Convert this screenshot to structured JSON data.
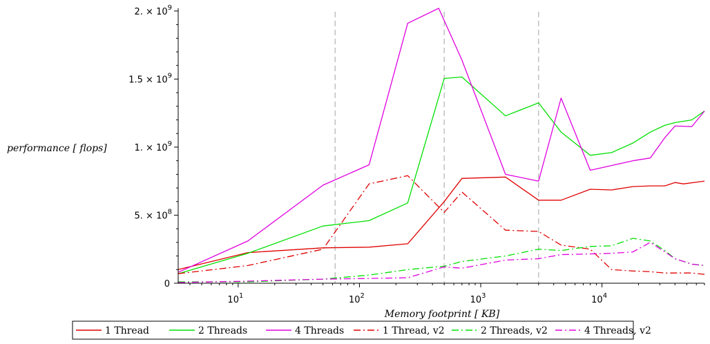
{
  "chart_data": {
    "type": "line",
    "title": "",
    "xlabel": "Memory footprint [ KB]",
    "ylabel": "performance [ flops]",
    "xscale": "log",
    "xlim": [
      3.2,
      70000
    ],
    "ylim": [
      0,
      2020000000.0
    ],
    "grid": false,
    "x_ticks": [
      {
        "value": 10,
        "label": "10",
        "exp": "1"
      },
      {
        "value": 100,
        "label": "10",
        "exp": "2"
      },
      {
        "value": 1000,
        "label": "10",
        "exp": "3"
      },
      {
        "value": 10000,
        "label": "10",
        "exp": "4"
      }
    ],
    "y_ticks": [
      {
        "value": 0,
        "label": "0",
        "exp": ""
      },
      {
        "value": 500000000,
        "label": "5. × 10",
        "exp": "8"
      },
      {
        "value": 1000000000,
        "label": "1. × 10",
        "exp": "9"
      },
      {
        "value": 1500000000,
        "label": "1.5 × 10",
        "exp": "9"
      },
      {
        "value": 2000000000,
        "label": "2. × 10",
        "exp": "9"
      }
    ],
    "vlines": [
      63,
      500,
      3000
    ],
    "vline_color": "#c0c0c0",
    "legend_position": "bottom",
    "series": [
      {
        "name": "1 Thread",
        "color": "#e00000",
        "dash": "solid",
        "x": [
          3.2,
          12,
          50,
          120,
          250,
          500,
          700,
          1600,
          3000,
          4600,
          8000,
          12000,
          18000,
          25000,
          33000,
          40000,
          47000,
          70000
        ],
        "y": [
          100000000,
          225000000,
          260000000,
          265000000,
          290000000,
          600000000,
          770000000,
          780000000,
          610000000,
          610000000,
          690000000,
          685000000,
          710000000,
          715000000,
          715000000,
          740000000,
          730000000,
          750000000
        ]
      },
      {
        "name": "2 Threads",
        "color": "#00e000",
        "dash": "solid",
        "x": [
          3.2,
          12,
          50,
          120,
          250,
          500,
          700,
          1600,
          3000,
          4600,
          8000,
          12000,
          18000,
          25000,
          33000,
          40000,
          55000,
          70000
        ],
        "y": [
          70000000,
          220000000,
          420000000,
          460000000,
          590000000,
          1505000000,
          1515000000,
          1230000000,
          1325000000,
          1110000000,
          940000000,
          960000000,
          1030000000,
          1110000000,
          1160000000,
          1180000000,
          1200000000,
          1265000000
        ]
      },
      {
        "name": "4 Threads",
        "color": "#e000e0",
        "dash": "solid",
        "x": [
          3.2,
          12,
          50,
          120,
          250,
          450,
          700,
          1600,
          3000,
          4600,
          8000,
          12000,
          18000,
          25000,
          33000,
          40000,
          55000,
          70000
        ],
        "y": [
          80000000,
          310000000,
          720000000,
          870000000,
          1910000000,
          2020000000,
          1640000000,
          800000000,
          750000000,
          1360000000,
          830000000,
          865000000,
          900000000,
          920000000,
          1070000000,
          1155000000,
          1150000000,
          1265000000
        ]
      },
      {
        "name": "1 Thread, v2",
        "color": "#e00000",
        "dash": "10,4,2,4",
        "x": [
          3.2,
          12,
          50,
          120,
          250,
          500,
          700,
          1600,
          3000,
          4600,
          8000,
          12000,
          18000,
          25000,
          33000,
          40000,
          55000,
          70000
        ],
        "y": [
          70000000,
          130000000,
          250000000,
          730000000,
          790000000,
          520000000,
          670000000,
          390000000,
          380000000,
          280000000,
          250000000,
          100000000,
          90000000,
          85000000,
          75000000,
          75000000,
          75000000,
          65000000
        ]
      },
      {
        "name": "2 Threads, v2",
        "color": "#00e000",
        "dash": "10,4,2,4",
        "x": [
          3.2,
          12,
          50,
          120,
          250,
          500,
          700,
          1600,
          3000,
          4600,
          8000,
          12000,
          18000,
          25000,
          33000,
          40000,
          55000,
          70000
        ],
        "y": [
          10000000,
          10000000,
          30000000,
          60000000,
          100000000,
          125000000,
          160000000,
          200000000,
          250000000,
          240000000,
          270000000,
          275000000,
          330000000,
          310000000,
          240000000,
          180000000,
          140000000,
          130000000
        ]
      },
      {
        "name": "4 Threads, v2",
        "color": "#e000e0",
        "dash": "10,4,2,4",
        "x": [
          3.2,
          12,
          50,
          120,
          250,
          500,
          700,
          1600,
          3000,
          4600,
          8000,
          12000,
          18000,
          25000,
          33000,
          40000,
          55000,
          70000
        ],
        "y": [
          5000000,
          15000000,
          30000000,
          35000000,
          40000000,
          120000000,
          110000000,
          170000000,
          180000000,
          210000000,
          215000000,
          220000000,
          230000000,
          300000000,
          230000000,
          180000000,
          140000000,
          130000000
        ]
      }
    ]
  }
}
